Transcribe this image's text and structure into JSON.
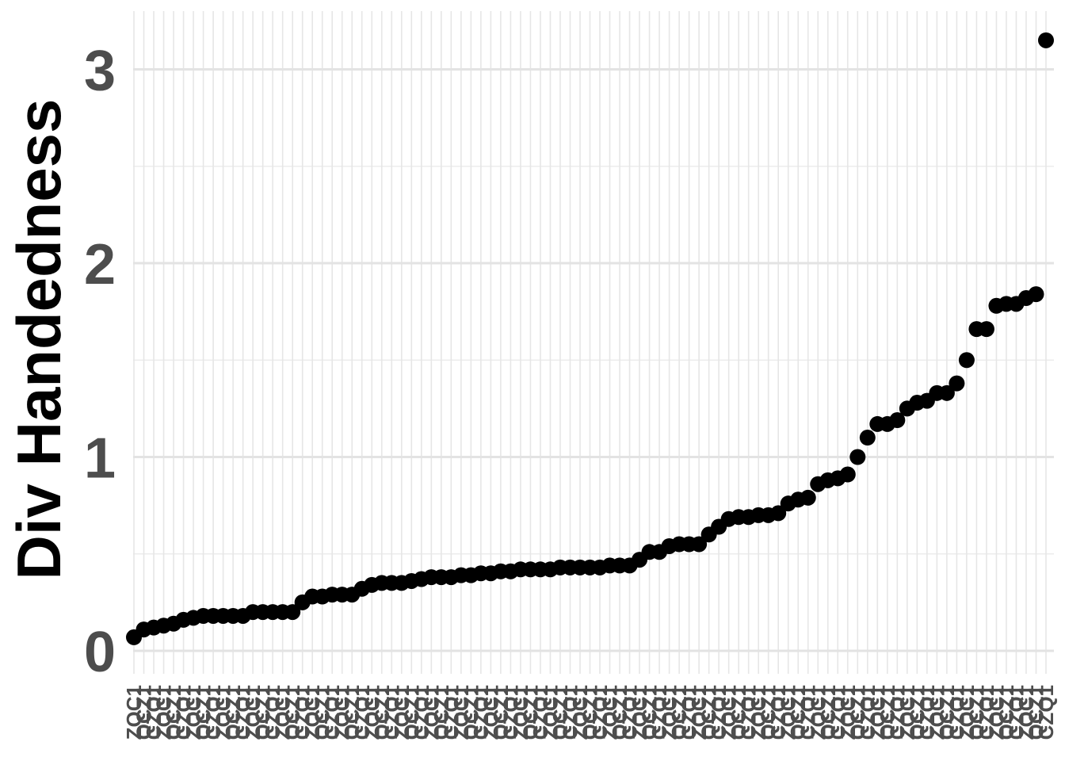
{
  "chart_data": {
    "type": "scatter",
    "ylabel": "Div Handedness",
    "xlabel": "",
    "ylim": [
      -0.15,
      3.3
    ],
    "yticks": [
      0,
      1,
      2,
      3
    ],
    "grid": true,
    "legend": "none",
    "point_color": "#000000",
    "x_tick_labels_legible": false,
    "y": [
      0.07,
      0.11,
      0.12,
      0.13,
      0.14,
      0.16,
      0.17,
      0.18,
      0.18,
      0.18,
      0.18,
      0.18,
      0.2,
      0.2,
      0.2,
      0.2,
      0.2,
      0.25,
      0.28,
      0.28,
      0.29,
      0.29,
      0.29,
      0.32,
      0.34,
      0.35,
      0.35,
      0.35,
      0.36,
      0.37,
      0.38,
      0.38,
      0.38,
      0.39,
      0.39,
      0.4,
      0.4,
      0.41,
      0.41,
      0.42,
      0.42,
      0.42,
      0.42,
      0.43,
      0.43,
      0.43,
      0.43,
      0.43,
      0.44,
      0.44,
      0.44,
      0.47,
      0.51,
      0.51,
      0.54,
      0.55,
      0.55,
      0.55,
      0.6,
      0.64,
      0.68,
      0.69,
      0.69,
      0.7,
      0.7,
      0.71,
      0.76,
      0.78,
      0.79,
      0.86,
      0.88,
      0.89,
      0.91,
      1.0,
      1.1,
      1.17,
      1.17,
      1.19,
      1.25,
      1.28,
      1.29,
      1.33,
      1.33,
      1.38,
      1.5,
      1.66,
      1.66,
      1.78,
      1.79,
      1.79,
      1.82,
      1.84,
      3.15
    ]
  }
}
